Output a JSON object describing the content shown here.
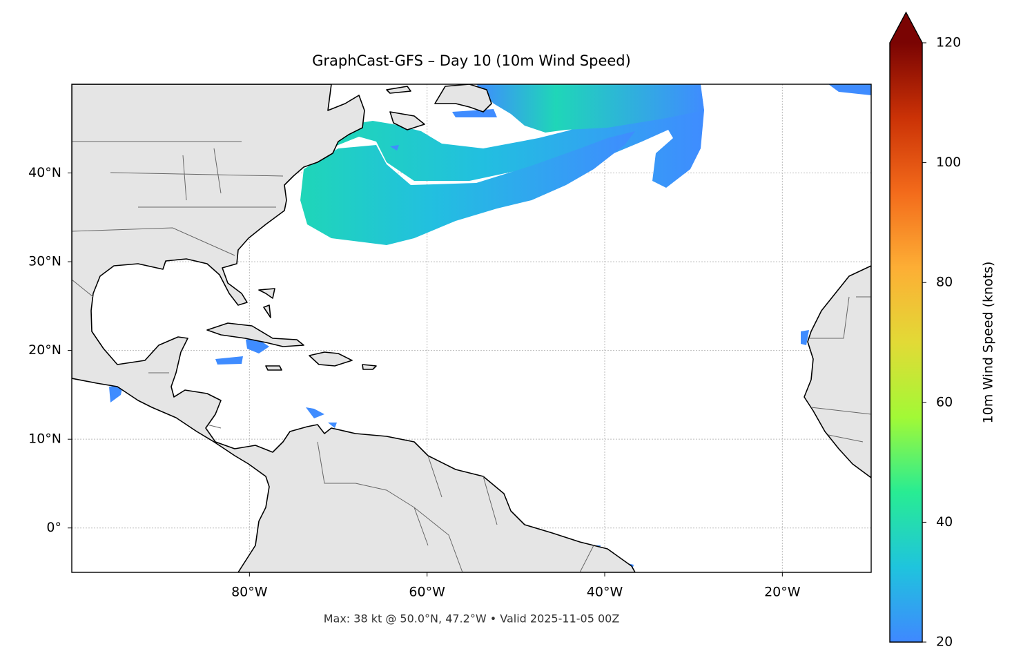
{
  "chart_data": {
    "type": "map",
    "title": "GraphCast-GFS – Day 10 (10m Wind Speed)",
    "footer": "Max: 38 kt @ 50.0°N, 47.2°W • Valid 2025-11-05 00Z",
    "xlim": [
      -100,
      -10
    ],
    "ylim": [
      -5,
      50
    ],
    "xticks": [
      {
        "value": -80,
        "label": "80°W"
      },
      {
        "value": -60,
        "label": "60°W"
      },
      {
        "value": -40,
        "label": "40°W"
      },
      {
        "value": -20,
        "label": "20°W"
      }
    ],
    "yticks": [
      {
        "value": 0,
        "label": "0°"
      },
      {
        "value": 10,
        "label": "10°N"
      },
      {
        "value": 20,
        "label": "20°N"
      },
      {
        "value": 30,
        "label": "30°N"
      },
      {
        "value": 40,
        "label": "40°N"
      }
    ],
    "grid": true,
    "colorbar": {
      "label": "10m Wind Speed (knots)",
      "lim": [
        20,
        120
      ],
      "ticks": [
        20,
        40,
        60,
        80,
        100,
        120
      ],
      "colors": [
        "#3f88ff",
        "#1fc4dd",
        "#28ec93",
        "#a2f936",
        "#e2da36",
        "#fdae35",
        "#f36b1b",
        "#cb3206",
        "#7a0403"
      ]
    }
  }
}
